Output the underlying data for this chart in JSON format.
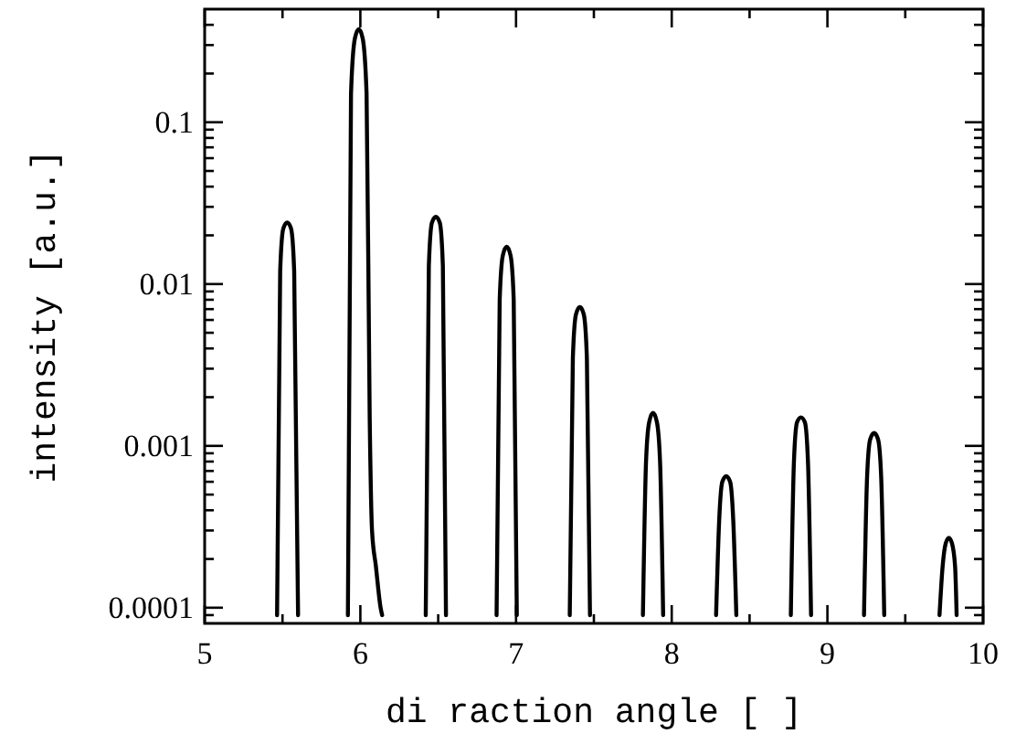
{
  "chart_data": {
    "type": "line",
    "xlabel": "di raction angle [ ]",
    "ylabel": "intensity [a.u.]",
    "log": "y",
    "grid": false,
    "marker": "none",
    "line_style": "solid",
    "series": [
      {
        "color": "#000000",
        "x": [
          5.465,
          5.485,
          5.505,
          5.53,
          5.555,
          5.575,
          5.6,
          5.61,
          5.92,
          5.94,
          5.965,
          5.99,
          6.015,
          6.04,
          6.06,
          6.075,
          6.1,
          6.13,
          6.14,
          6.15,
          6.42,
          6.44,
          6.46,
          6.485,
          6.51,
          6.53,
          6.55,
          6.56,
          6.875,
          6.895,
          6.915,
          6.94,
          6.965,
          6.985,
          7.005,
          7.015,
          7.345,
          7.365,
          7.385,
          7.41,
          7.435,
          7.455,
          7.475,
          7.485,
          7.815,
          7.835,
          7.855,
          7.88,
          7.905,
          7.925,
          7.945,
          7.955,
          8.285,
          8.305,
          8.325,
          8.35,
          8.375,
          8.395,
          8.415,
          8.425,
          8.765,
          8.785,
          8.805,
          8.83,
          8.855,
          8.875,
          8.895,
          8.905,
          9.235,
          9.255,
          9.275,
          9.3,
          9.325,
          9.345,
          9.365,
          9.375,
          9.72,
          9.74,
          9.76,
          9.78,
          9.8,
          9.82,
          9.83
        ],
        "values": [
          9e-05,
          0.012,
          0.022,
          0.024,
          0.022,
          0.012,
          9e-05,
          null,
          9e-05,
          0.15,
          0.33,
          0.376,
          0.33,
          0.15,
          0.0015,
          0.0003,
          0.00018,
          0.0001,
          9e-05,
          null,
          9e-05,
          0.013,
          0.024,
          0.026,
          0.024,
          0.013,
          9e-05,
          null,
          9e-05,
          0.008,
          0.015,
          0.017,
          0.015,
          0.008,
          9e-05,
          null,
          9e-05,
          0.0035,
          0.0065,
          0.0072,
          0.0065,
          0.0035,
          9e-05,
          null,
          9e-05,
          0.0008,
          0.0014,
          0.0016,
          0.0014,
          0.0008,
          9e-05,
          null,
          9e-05,
          0.00035,
          0.0006,
          0.00065,
          0.0006,
          0.00035,
          9e-05,
          null,
          9e-05,
          0.0008,
          0.0014,
          0.0015,
          0.0014,
          0.0008,
          9e-05,
          null,
          9e-05,
          0.00065,
          0.0011,
          0.0012,
          0.0011,
          0.00065,
          9e-05,
          null,
          9e-05,
          0.00018,
          0.00025,
          0.00027,
          0.00025,
          0.00018,
          9e-05
        ]
      }
    ],
    "xlim": [
      5,
      10
    ],
    "xticks": [
      5,
      {
        "value": 5.5,
        "label": null
      },
      6,
      {
        "value": 6.5,
        "label": null
      },
      7,
      {
        "value": 7.5,
        "label": null
      },
      8,
      {
        "value": 8.5,
        "label": null
      },
      9,
      {
        "value": 9.5,
        "label": null
      },
      10
    ],
    "ylim": [
      8e-05,
      0.5
    ],
    "yticks": [
      {
        "value": 9e-05,
        "label": null
      },
      0.0001,
      {
        "value": 0.0002,
        "label": null
      },
      {
        "value": 0.0003,
        "label": null
      },
      {
        "value": 0.0004,
        "label": null
      },
      {
        "value": 0.0005,
        "label": null
      },
      {
        "value": 0.0006,
        "label": null
      },
      {
        "value": 0.0007,
        "label": null
      },
      {
        "value": 0.0008,
        "label": null
      },
      {
        "value": 0.0009,
        "label": null
      },
      0.001,
      {
        "value": 0.002,
        "label": null
      },
      {
        "value": 0.003,
        "label": null
      },
      {
        "value": 0.004,
        "label": null
      },
      {
        "value": 0.005,
        "label": null
      },
      {
        "value": 0.006,
        "label": null
      },
      {
        "value": 0.007,
        "label": null
      },
      {
        "value": 0.008,
        "label": null
      },
      {
        "value": 0.009,
        "label": null
      },
      0.01,
      {
        "value": 0.02,
        "label": null
      },
      {
        "value": 0.03,
        "label": null
      },
      {
        "value": 0.04,
        "label": null
      },
      {
        "value": 0.05,
        "label": null
      },
      {
        "value": 0.06,
        "label": null
      },
      {
        "value": 0.07,
        "label": null
      },
      {
        "value": 0.08,
        "label": null
      },
      {
        "value": 0.09,
        "label": null
      },
      0.1,
      {
        "value": 0.2,
        "label": null
      },
      {
        "value": 0.3,
        "label": null
      },
      {
        "value": 0.4,
        "label": null
      }
    ]
  }
}
